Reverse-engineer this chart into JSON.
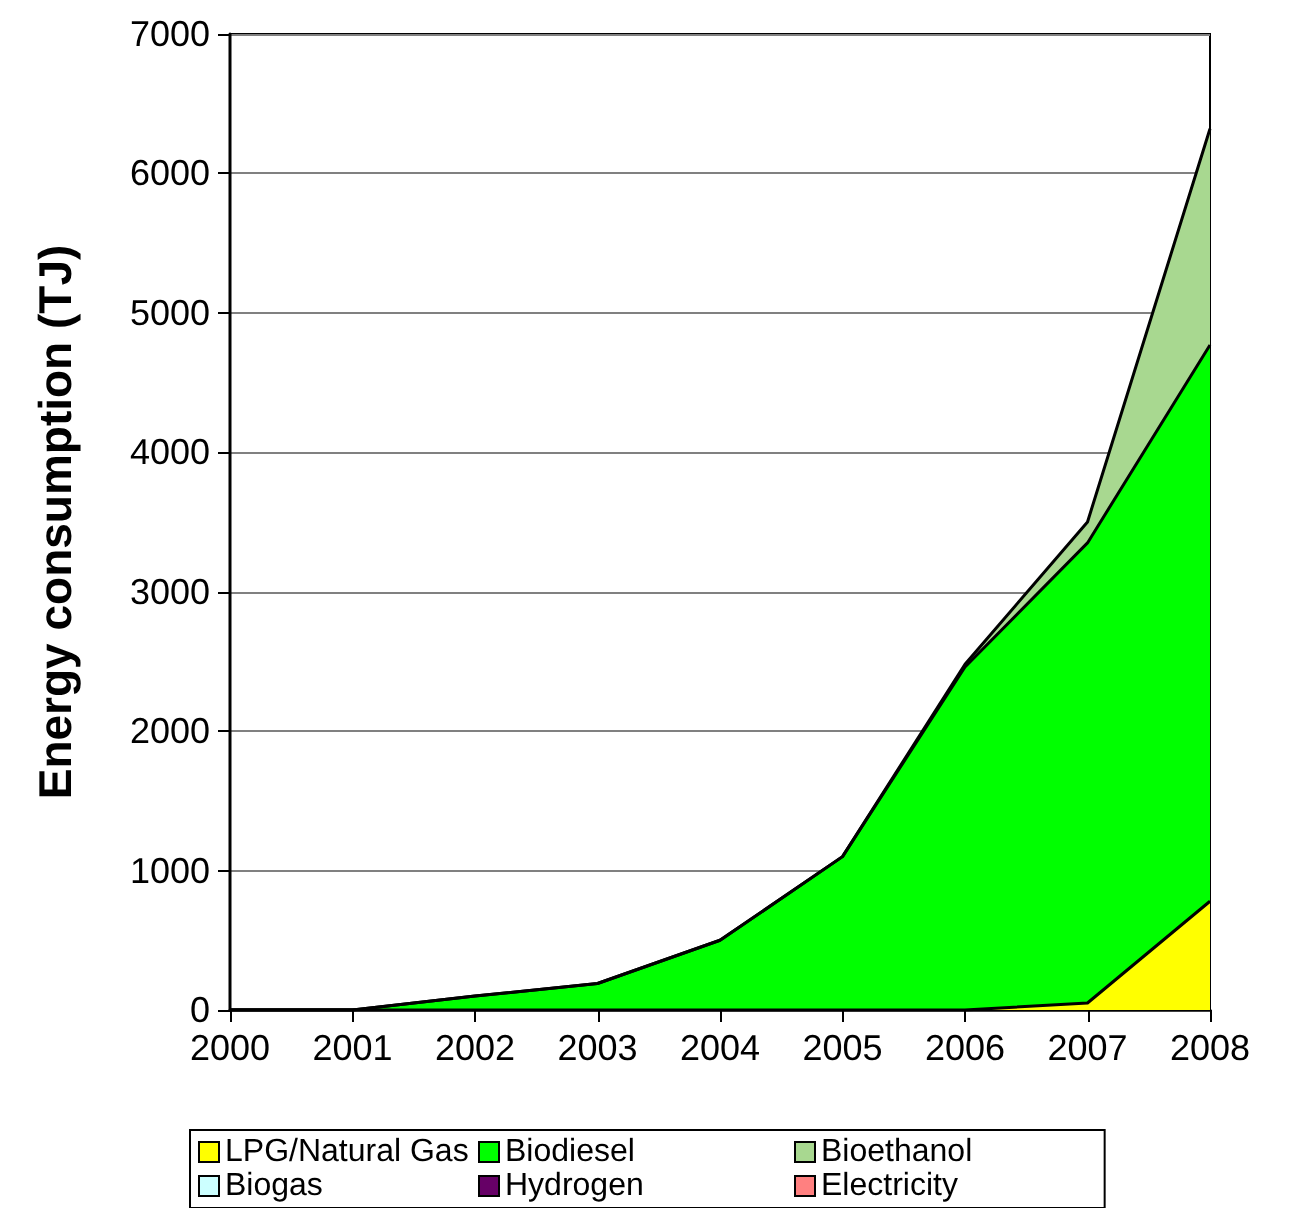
{
  "chart_data": {
    "type": "area",
    "stacked": true,
    "ylabel": "Energy consumption (TJ)",
    "categories": [
      "2000",
      "2001",
      "2002",
      "2003",
      "2004",
      "2005",
      "2006",
      "2007",
      "2008"
    ],
    "series": [
      {
        "name": "LPG/Natural Gas",
        "color": "#ffff00",
        "values": [
          0,
          0,
          0,
          0,
          0,
          0,
          0,
          50,
          780
        ]
      },
      {
        "name": "Biodiesel",
        "color": "#00ff00",
        "values": [
          0,
          0,
          100,
          190,
          500,
          1100,
          2460,
          3300,
          3990
        ]
      },
      {
        "name": "Bioethanol",
        "color": "#a8d890",
        "values": [
          0,
          0,
          0,
          0,
          0,
          0,
          20,
          150,
          1550
        ]
      },
      {
        "name": "Biogas",
        "color": "#ccffff",
        "values": [
          null,
          null,
          null,
          null,
          null,
          null,
          null,
          null,
          null
        ]
      },
      {
        "name": "Hydrogen",
        "color": "#660066",
        "values": [
          null,
          null,
          null,
          null,
          null,
          null,
          null,
          null,
          null
        ]
      },
      {
        "name": "Electricity",
        "color": "#ff8080",
        "values": [
          null,
          null,
          null,
          null,
          null,
          null,
          null,
          null,
          null
        ]
      }
    ],
    "ylim": [
      0,
      7000
    ],
    "yticks": [
      0,
      1000,
      2000,
      3000,
      4000,
      5000,
      6000,
      7000
    ],
    "grid": "y",
    "legend": "bottom"
  }
}
